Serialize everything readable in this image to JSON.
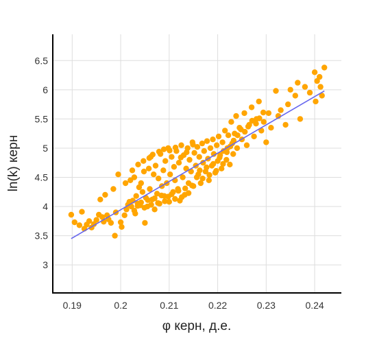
{
  "chart_data": {
    "type": "scatter",
    "title": "",
    "xlabel": "φ керн, д.е.",
    "ylabel": "ln(k) керн",
    "xlim": [
      0.186,
      0.2455
    ],
    "ylim": [
      2.52,
      6.95
    ],
    "xticks": [
      0.19,
      0.2,
      0.21,
      0.22,
      0.23,
      0.24
    ],
    "xtick_labels": [
      "0.19",
      "0.2",
      "0.21",
      "0.22",
      "0.23",
      "0.24"
    ],
    "yticks": [
      3,
      3.5,
      4,
      4.5,
      5,
      5.5,
      6,
      6.5
    ],
    "ytick_labels": [
      "3",
      "3.5",
      "4",
      "4.5",
      "5",
      "5.5",
      "6",
      "6.5"
    ],
    "grid": true,
    "legend": "none",
    "colors": {
      "points": "#FFA500",
      "trend": "#6666EE",
      "axis": "#000000",
      "grid": "#DDDDDD"
    },
    "series": [
      {
        "kind": "points",
        "points": [
          [
            0.1898,
            3.86
          ],
          [
            0.1905,
            3.73
          ],
          [
            0.1915,
            3.68
          ],
          [
            0.192,
            3.91
          ],
          [
            0.1925,
            3.62
          ],
          [
            0.193,
            3.69
          ],
          [
            0.1935,
            3.75
          ],
          [
            0.194,
            3.64
          ],
          [
            0.1945,
            3.7
          ],
          [
            0.195,
            3.77
          ],
          [
            0.1955,
            3.86
          ],
          [
            0.1958,
            4.12
          ],
          [
            0.1962,
            3.82
          ],
          [
            0.1965,
            3.74
          ],
          [
            0.1968,
            4.2
          ],
          [
            0.1972,
            3.85
          ],
          [
            0.1975,
            3.78
          ],
          [
            0.198,
            3.72
          ],
          [
            0.1985,
            4.3
          ],
          [
            0.1988,
            3.5
          ],
          [
            0.199,
            3.9
          ],
          [
            0.1995,
            4.55
          ],
          [
            0.2,
            3.73
          ],
          [
            0.2002,
            3.65
          ],
          [
            0.2008,
            3.85
          ],
          [
            0.201,
            4.4
          ],
          [
            0.2012,
            3.95
          ],
          [
            0.2015,
            4.03
          ],
          [
            0.2018,
            4.08
          ],
          [
            0.202,
            4.45
          ],
          [
            0.2022,
            4.0
          ],
          [
            0.2025,
            4.1
          ],
          [
            0.2028,
            4.5
          ],
          [
            0.203,
            3.88
          ],
          [
            0.2032,
            4.18
          ],
          [
            0.2035,
            4.05
          ],
          [
            0.2038,
            4.33
          ],
          [
            0.204,
            4.02
          ],
          [
            0.2042,
            4.4
          ],
          [
            0.2045,
            4.25
          ],
          [
            0.2048,
            4.6
          ],
          [
            0.205,
            3.72
          ],
          [
            0.2052,
            4.15
          ],
          [
            0.2055,
            4.0
          ],
          [
            0.2058,
            4.65
          ],
          [
            0.206,
            4.3
          ],
          [
            0.2062,
            4.85
          ],
          [
            0.2065,
            4.12
          ],
          [
            0.2068,
            4.55
          ],
          [
            0.207,
            3.95
          ],
          [
            0.2072,
            4.7
          ],
          [
            0.2075,
            4.22
          ],
          [
            0.2078,
            4.48
          ],
          [
            0.208,
            4.05
          ],
          [
            0.2082,
            4.9
          ],
          [
            0.2085,
            4.35
          ],
          [
            0.2088,
            4.62
          ],
          [
            0.209,
            4.18
          ],
          [
            0.2092,
            4.78
          ],
          [
            0.2095,
            4.4
          ],
          [
            0.2098,
            5.0
          ],
          [
            0.21,
            4.08
          ],
          [
            0.2102,
            4.55
          ],
          [
            0.2105,
            4.85
          ],
          [
            0.2108,
            4.25
          ],
          [
            0.211,
            4.68
          ],
          [
            0.2112,
            4.45
          ],
          [
            0.2115,
            4.95
          ],
          [
            0.2118,
            4.3
          ],
          [
            0.212,
            4.75
          ],
          [
            0.2122,
            4.1
          ],
          [
            0.2125,
            5.05
          ],
          [
            0.2128,
            4.5
          ],
          [
            0.213,
            4.88
          ],
          [
            0.2132,
            4.2
          ],
          [
            0.2135,
            4.65
          ],
          [
            0.2138,
            5.0
          ],
          [
            0.214,
            4.4
          ],
          [
            0.2142,
            4.8
          ],
          [
            0.2145,
            4.6
          ],
          [
            0.2148,
            5.1
          ],
          [
            0.215,
            4.35
          ],
          [
            0.2152,
            4.92
          ],
          [
            0.2155,
            4.7
          ],
          [
            0.2158,
            5.02
          ],
          [
            0.216,
            4.55
          ],
          [
            0.2162,
            4.85
          ],
          [
            0.2165,
            4.4
          ],
          [
            0.2168,
            5.08
          ],
          [
            0.217,
            4.75
          ],
          [
            0.2172,
            4.95
          ],
          [
            0.2175,
            4.6
          ],
          [
            0.2178,
            5.12
          ],
          [
            0.218,
            4.82
          ],
          [
            0.2182,
            4.45
          ],
          [
            0.2185,
            5.0
          ],
          [
            0.2188,
            4.7
          ],
          [
            0.219,
            5.15
          ],
          [
            0.2192,
            4.9
          ],
          [
            0.2195,
            4.58
          ],
          [
            0.2198,
            5.05
          ],
          [
            0.22,
            4.78
          ],
          [
            0.2202,
            5.2
          ],
          [
            0.2205,
            4.88
          ],
          [
            0.2208,
            4.65
          ],
          [
            0.221,
            5.1
          ],
          [
            0.2212,
            4.95
          ],
          [
            0.2215,
            5.3
          ],
          [
            0.2218,
            4.8
          ],
          [
            0.222,
            5.0
          ],
          [
            0.2222,
            5.22
          ],
          [
            0.2225,
            4.72
          ],
          [
            0.2228,
            5.45
          ],
          [
            0.223,
            5.08
          ],
          [
            0.2232,
            4.9
          ],
          [
            0.2235,
            5.25
          ],
          [
            0.2238,
            5.55
          ],
          [
            0.224,
            5.0
          ],
          [
            0.2245,
            5.35
          ],
          [
            0.225,
            5.15
          ],
          [
            0.2255,
            5.6
          ],
          [
            0.226,
            5.05
          ],
          [
            0.2265,
            5.4
          ],
          [
            0.227,
            5.7
          ],
          [
            0.2275,
            5.2
          ],
          [
            0.228,
            5.5
          ],
          [
            0.2285,
            5.8
          ],
          [
            0.229,
            5.3
          ],
          [
            0.2295,
            5.45
          ],
          [
            0.23,
            5.1
          ],
          [
            0.2305,
            5.6
          ],
          [
            0.231,
            5.35
          ],
          [
            0.232,
            5.98
          ],
          [
            0.2325,
            5.55
          ],
          [
            0.233,
            5.65
          ],
          [
            0.234,
            5.4
          ],
          [
            0.2345,
            5.75
          ],
          [
            0.235,
            6.0
          ],
          [
            0.236,
            5.9
          ],
          [
            0.2365,
            6.12
          ],
          [
            0.237,
            5.5
          ],
          [
            0.238,
            6.05
          ],
          [
            0.239,
            5.95
          ],
          [
            0.24,
            6.3
          ],
          [
            0.2402,
            5.8
          ],
          [
            0.2405,
            6.15
          ],
          [
            0.241,
            6.22
          ],
          [
            0.2412,
            6.05
          ],
          [
            0.2415,
            5.9
          ],
          [
            0.242,
            6.38
          ],
          [
            0.2028,
            3.93
          ],
          [
            0.2035,
            4.01
          ],
          [
            0.2042,
            4.07
          ],
          [
            0.2049,
            3.98
          ],
          [
            0.2056,
            4.11
          ],
          [
            0.2063,
            4.03
          ],
          [
            0.207,
            4.14
          ],
          [
            0.2077,
            4.06
          ],
          [
            0.2084,
            4.19
          ],
          [
            0.2091,
            4.09
          ],
          [
            0.2098,
            4.17
          ],
          [
            0.2105,
            4.21
          ],
          [
            0.2112,
            4.13
          ],
          [
            0.2119,
            4.27
          ],
          [
            0.2126,
            4.16
          ],
          [
            0.2133,
            4.31
          ],
          [
            0.214,
            4.23
          ],
          [
            0.2147,
            4.36
          ],
          [
            0.2024,
            4.62
          ],
          [
            0.2036,
            4.72
          ],
          [
            0.2047,
            4.78
          ],
          [
            0.2059,
            4.83
          ],
          [
            0.2066,
            4.89
          ],
          [
            0.2079,
            4.94
          ],
          [
            0.2089,
            4.98
          ],
          [
            0.2101,
            4.96
          ],
          [
            0.2113,
            5.01
          ],
          [
            0.2124,
            4.84
          ],
          [
            0.2136,
            4.93
          ],
          [
            0.2149,
            5.06
          ],
          [
            0.2157,
            4.5
          ],
          [
            0.2163,
            4.62
          ],
          [
            0.2169,
            4.48
          ],
          [
            0.2177,
            4.67
          ],
          [
            0.2183,
            4.54
          ],
          [
            0.2191,
            4.73
          ],
          [
            0.2197,
            4.61
          ],
          [
            0.2204,
            4.84
          ],
          [
            0.2211,
            4.73
          ],
          [
            0.2219,
            4.93
          ],
          [
            0.2226,
            5.03
          ],
          [
            0.2233,
            5.13
          ],
          [
            0.2241,
            5.22
          ],
          [
            0.2248,
            5.32
          ],
          [
            0.2256,
            5.28
          ],
          [
            0.2263,
            5.37
          ],
          [
            0.2271,
            5.47
          ],
          [
            0.2279,
            5.42
          ],
          [
            0.2286,
            5.51
          ],
          [
            0.2294,
            5.61
          ]
        ]
      },
      {
        "kind": "trendline",
        "points": [
          [
            0.1898,
            3.45
          ],
          [
            0.242,
            5.98
          ]
        ]
      }
    ]
  }
}
